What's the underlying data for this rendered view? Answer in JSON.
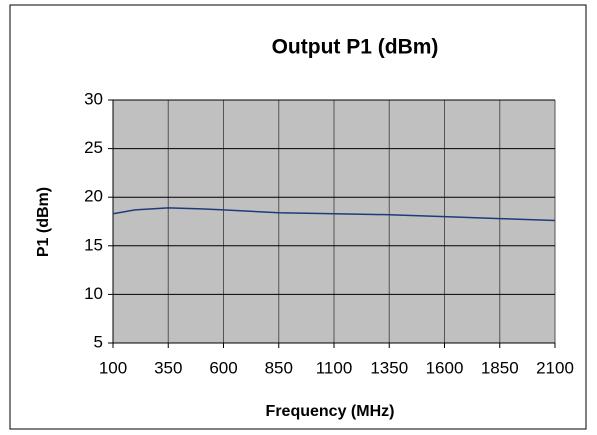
{
  "chart_data": {
    "type": "line",
    "title": "Output P1 (dBm)",
    "x_label": "Frequency (MHz)",
    "y_label": "P1 (dBm)",
    "x": [
      100,
      200,
      350,
      500,
      600,
      850,
      1100,
      1350,
      1600,
      1850,
      2100
    ],
    "values": [
      18.3,
      18.7,
      18.9,
      18.8,
      18.7,
      18.4,
      18.3,
      18.2,
      18.0,
      17.8,
      17.6
    ],
    "color": "#1f3a7a",
    "xlim": [
      100,
      2100
    ],
    "xticks": [
      100,
      350,
      600,
      850,
      1100,
      1350,
      1600,
      1850,
      2100
    ],
    "ylim": [
      5,
      30
    ],
    "yticks": [
      5,
      10,
      15,
      20,
      25,
      30
    ],
    "grid": true
  }
}
